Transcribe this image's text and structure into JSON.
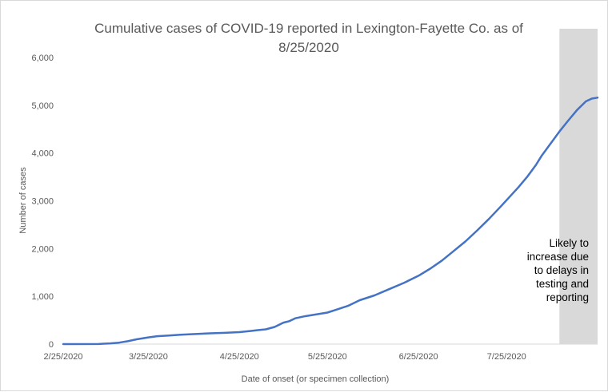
{
  "chart_data": {
    "type": "line",
    "title_line1": "Cumulative cases of COVID-19 reported in Lexington-Fayette Co.  as of",
    "title_line2": "8/25/2020",
    "xlabel": "Date of onset (or specimen collection)",
    "ylabel": "Number  of cases",
    "ylim": [
      0,
      6000
    ],
    "yticks": [
      0,
      1000,
      2000,
      3000,
      4000,
      5000,
      6000
    ],
    "ytick_labels": [
      "0",
      "1,000",
      "2,000",
      "3,000",
      "4,000",
      "5,000",
      "6,000"
    ],
    "xlim": [
      "2020-02-25",
      "2020-08-25"
    ],
    "xtick_labels": [
      "2/25/2020",
      "3/25/2020",
      "4/25/2020",
      "5/25/2020",
      "6/25/2020",
      "7/25/2020"
    ],
    "xtick_dates": [
      "2020-02-25",
      "2020-03-25",
      "2020-04-25",
      "2020-05-25",
      "2020-06-25",
      "2020-07-25"
    ],
    "grid": false,
    "legend": "none",
    "series": [
      {
        "color": "#4472c4",
        "points": [
          [
            "2020-02-25",
            0
          ],
          [
            "2020-03-08",
            2
          ],
          [
            "2020-03-12",
            15
          ],
          [
            "2020-03-15",
            30
          ],
          [
            "2020-03-18",
            60
          ],
          [
            "2020-03-21",
            100
          ],
          [
            "2020-03-25",
            140
          ],
          [
            "2020-03-28",
            165
          ],
          [
            "2020-04-01",
            180
          ],
          [
            "2020-04-05",
            195
          ],
          [
            "2020-04-10",
            210
          ],
          [
            "2020-04-15",
            225
          ],
          [
            "2020-04-20",
            235
          ],
          [
            "2020-04-25",
            250
          ],
          [
            "2020-04-29",
            275
          ],
          [
            "2020-05-01",
            290
          ],
          [
            "2020-05-04",
            310
          ],
          [
            "2020-05-07",
            360
          ],
          [
            "2020-05-10",
            450
          ],
          [
            "2020-05-12",
            480
          ],
          [
            "2020-05-14",
            540
          ],
          [
            "2020-05-17",
            580
          ],
          [
            "2020-05-20",
            610
          ],
          [
            "2020-05-25",
            660
          ],
          [
            "2020-05-28",
            720
          ],
          [
            "2020-06-01",
            800
          ],
          [
            "2020-06-05",
            920
          ],
          [
            "2020-06-10",
            1020
          ],
          [
            "2020-06-15",
            1150
          ],
          [
            "2020-06-20",
            1280
          ],
          [
            "2020-06-25",
            1430
          ],
          [
            "2020-06-29",
            1580
          ],
          [
            "2020-07-03",
            1750
          ],
          [
            "2020-07-07",
            1950
          ],
          [
            "2020-07-11",
            2150
          ],
          [
            "2020-07-15",
            2380
          ],
          [
            "2020-07-19",
            2620
          ],
          [
            "2020-07-23",
            2880
          ],
          [
            "2020-07-26",
            3080
          ],
          [
            "2020-07-29",
            3280
          ],
          [
            "2020-08-01",
            3500
          ],
          [
            "2020-08-04",
            3750
          ],
          [
            "2020-08-06",
            3950
          ],
          [
            "2020-08-09",
            4200
          ],
          [
            "2020-08-12",
            4450
          ],
          [
            "2020-08-15",
            4680
          ],
          [
            "2020-08-18",
            4900
          ],
          [
            "2020-08-21",
            5080
          ],
          [
            "2020-08-23",
            5140
          ],
          [
            "2020-08-25",
            5160
          ]
        ]
      }
    ],
    "shaded_region": {
      "start": "2020-08-12",
      "end": "2020-08-25",
      "color": "#d9d9d9",
      "note_lines": [
        "Likely to",
        "increase due",
        "to delays in",
        "testing and",
        "reporting"
      ]
    }
  }
}
